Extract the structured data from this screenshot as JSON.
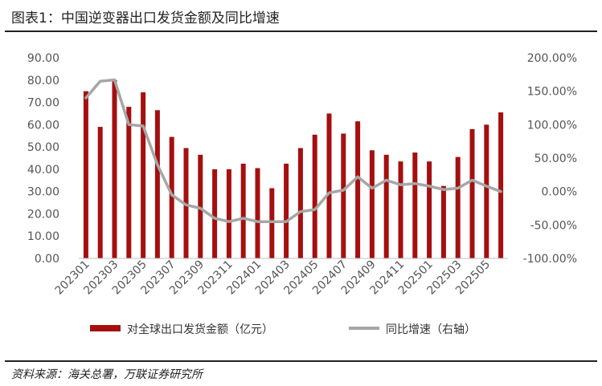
{
  "title": "图表1：中国逆变器出口发货金额及同比增速",
  "source": "资料来源：海关总署，万联证券研究所",
  "colors": {
    "bar": "#A50F0F",
    "line": "#A6A6A6"
  },
  "chart_data": {
    "type": "bar+line",
    "categories": [
      "202301",
      "202302",
      "202303",
      "202304",
      "202305",
      "202306",
      "202307",
      "202308",
      "202309",
      "202310",
      "202311",
      "202312",
      "202401",
      "202402",
      "202403",
      "202404",
      "202405",
      "202406",
      "202407",
      "202408",
      "202409",
      "202410",
      "202411",
      "202412",
      "202501",
      "202502",
      "202503",
      "202504",
      "202505",
      "202506"
    ],
    "x_tick_labels": [
      "202301",
      "202303",
      "202305",
      "202307",
      "202309",
      "202311",
      "202401",
      "202403",
      "202405",
      "202407",
      "202409",
      "202411",
      "202501",
      "202503",
      "202505"
    ],
    "series": [
      {
        "name": "对全球出口发货金额（亿元）",
        "type": "bar",
        "axis": "left",
        "values": [
          75.0,
          59.0,
          80.0,
          68.0,
          74.5,
          66.5,
          54.5,
          49.5,
          46.5,
          40.0,
          40.0,
          42.5,
          40.5,
          31.5,
          42.5,
          49.5,
          55.5,
          65.0,
          56.0,
          61.5,
          48.5,
          46.5,
          43.5,
          47.5,
          43.5,
          32.5,
          45.5,
          58.0,
          60.0,
          65.5
        ]
      },
      {
        "name": "同比增速（右轴）",
        "type": "line",
        "axis": "right",
        "values": [
          1.4,
          1.65,
          1.67,
          1.0,
          0.98,
          0.4,
          -0.05,
          -0.2,
          -0.25,
          -0.4,
          -0.45,
          -0.4,
          -0.45,
          -0.45,
          -0.45,
          -0.3,
          -0.27,
          -0.02,
          0.02,
          0.22,
          0.05,
          0.17,
          0.1,
          0.12,
          0.08,
          0.03,
          0.05,
          0.17,
          0.08,
          0.0
        ]
      }
    ],
    "y_left": {
      "min": 0,
      "max": 90,
      "ticks": [
        "0.00",
        "10.00",
        "20.00",
        "30.00",
        "40.00",
        "50.00",
        "60.00",
        "70.00",
        "80.00",
        "90.00"
      ]
    },
    "y_right": {
      "min": -1.0,
      "max": 2.0,
      "ticks": [
        "-100.00%",
        "-50.00%",
        "0.00%",
        "50.00%",
        "100.00%",
        "150.00%",
        "200.00%"
      ]
    },
    "grid": false,
    "legend_position": "bottom"
  }
}
